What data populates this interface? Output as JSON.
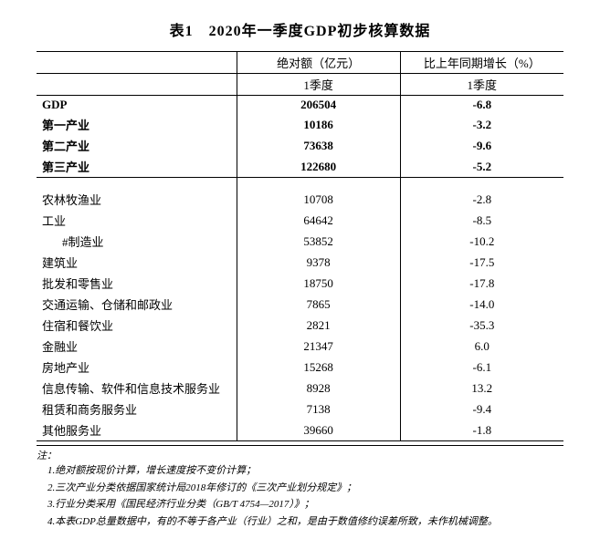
{
  "title": "表1　2020年一季度GDP初步核算数据",
  "header": {
    "abs_label": "绝对额（亿元）",
    "pct_label": "比上年同期增长（%）",
    "period": "1季度"
  },
  "sections": {
    "summary": [
      {
        "name": "GDP",
        "abs": "206504",
        "pct": "-6.8",
        "bold": true
      },
      {
        "name": "第一产业",
        "abs": "10186",
        "pct": "-3.2",
        "bold": true
      },
      {
        "name": "第二产业",
        "abs": "73638",
        "pct": "-9.6",
        "bold": true
      },
      {
        "name": "第三产业",
        "abs": "122680",
        "pct": "-5.2",
        "bold": true
      }
    ],
    "detail": [
      {
        "name": "农林牧渔业",
        "abs": "10708",
        "pct": "-2.8"
      },
      {
        "name": "工业",
        "abs": "64642",
        "pct": "-8.5"
      },
      {
        "name": "#制造业",
        "abs": "53852",
        "pct": "-10.2",
        "indent": 2
      },
      {
        "name": "建筑业",
        "abs": "9378",
        "pct": "-17.5"
      },
      {
        "name": "批发和零售业",
        "abs": "18750",
        "pct": "-17.8"
      },
      {
        "name": "交通运输、仓储和邮政业",
        "abs": "7865",
        "pct": "-14.0"
      },
      {
        "name": "住宿和餐饮业",
        "abs": "2821",
        "pct": "-35.3"
      },
      {
        "name": "金融业",
        "abs": "21347",
        "pct": "6.0"
      },
      {
        "name": "房地产业",
        "abs": "15268",
        "pct": "-6.1"
      },
      {
        "name": "信息传输、软件和信息技术服务业",
        "abs": "8928",
        "pct": "13.2"
      },
      {
        "name": "租赁和商务服务业",
        "abs": "7138",
        "pct": "-9.4"
      },
      {
        "name": "其他服务业",
        "abs": "39660",
        "pct": "-1.8"
      }
    ]
  },
  "notes_heading": "注：",
  "notes": [
    "1.绝对额按现价计算，增长速度按不变价计算；",
    "2.三次产业分类依据国家统计局2018年修订的《三次产业划分规定》；",
    "3.行业分类采用《国民经济行业分类（GB/T 4754—2017）》；",
    "4.本表GDP总量数据中，有的不等于各产业（行业）之和，是由于数值修约误差所致，未作机械调整。"
  ],
  "style": {
    "font_family": "SimSun",
    "title_fontsize": 16,
    "body_fontsize": 13,
    "notes_fontsize": 11,
    "background_color": "#ffffff",
    "text_color": "#000000",
    "border_color": "#000000"
  }
}
